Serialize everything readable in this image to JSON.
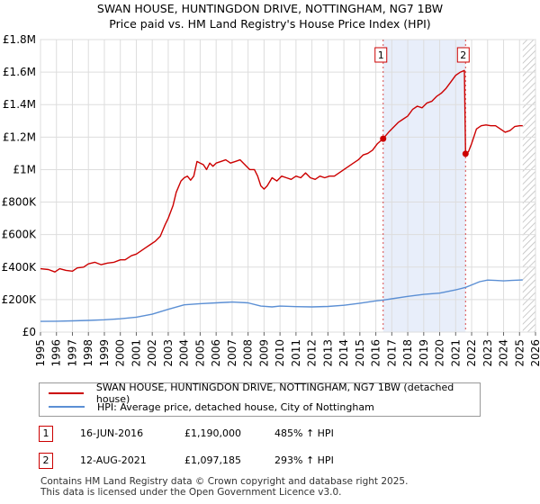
{
  "chart_data": {
    "type": "line",
    "title": "SWAN HOUSE, HUNTINGDON DRIVE, NOTTINGHAM, NG7 1BW",
    "subtitle": "Price paid vs. HM Land Registry's House Price Index (HPI)",
    "xlabel": "",
    "ylabel": "",
    "xlim": [
      1995,
      2026
    ],
    "ylim": [
      0,
      1800000
    ],
    "y_ticks": [
      {
        "value": 0,
        "label": "£0"
      },
      {
        "value": 200000,
        "label": "£200K"
      },
      {
        "value": 400000,
        "label": "£400K"
      },
      {
        "value": 600000,
        "label": "£600K"
      },
      {
        "value": 800000,
        "label": "£800K"
      },
      {
        "value": 1000000,
        "label": "£1M"
      },
      {
        "value": 1200000,
        "label": "£1.2M"
      },
      {
        "value": 1400000,
        "label": "£1.4M"
      },
      {
        "value": 1600000,
        "label": "£1.6M"
      },
      {
        "value": 1800000,
        "label": "£1.8M"
      }
    ],
    "x_ticks": [
      "1995",
      "1996",
      "1997",
      "1998",
      "1999",
      "2000",
      "2001",
      "2002",
      "2003",
      "2004",
      "2005",
      "2006",
      "2007",
      "2008",
      "2009",
      "2010",
      "2011",
      "2012",
      "2013",
      "2014",
      "2015",
      "2016",
      "2017",
      "2018",
      "2019",
      "2020",
      "2021",
      "2022",
      "2023",
      "2024",
      "2025",
      "2026"
    ],
    "grid": true,
    "shaded_region": {
      "from": 2016.46,
      "to": 2021.62
    },
    "projection_from": 2025.2,
    "series": [
      {
        "name": "SWAN HOUSE, HUNTINGDON DRIVE, NOTTINGHAM, NG7 1BW (detached house)",
        "color": "#cc0000",
        "points": [
          [
            1995.0,
            390000
          ],
          [
            1995.5,
            385000
          ],
          [
            1995.9,
            370000
          ],
          [
            1996.2,
            390000
          ],
          [
            1996.6,
            380000
          ],
          [
            1997.0,
            375000
          ],
          [
            1997.3,
            395000
          ],
          [
            1997.7,
            400000
          ],
          [
            1998.0,
            420000
          ],
          [
            1998.4,
            430000
          ],
          [
            1998.8,
            415000
          ],
          [
            1999.2,
            425000
          ],
          [
            1999.6,
            430000
          ],
          [
            2000.0,
            445000
          ],
          [
            2000.3,
            445000
          ],
          [
            2000.7,
            470000
          ],
          [
            2001.0,
            480000
          ],
          [
            2001.3,
            500000
          ],
          [
            2001.6,
            520000
          ],
          [
            2001.9,
            540000
          ],
          [
            2002.2,
            560000
          ],
          [
            2002.5,
            590000
          ],
          [
            2002.8,
            660000
          ],
          [
            2003.0,
            700000
          ],
          [
            2003.3,
            780000
          ],
          [
            2003.5,
            860000
          ],
          [
            2003.8,
            930000
          ],
          [
            2004.0,
            950000
          ],
          [
            2004.2,
            960000
          ],
          [
            2004.4,
            935000
          ],
          [
            2004.6,
            960000
          ],
          [
            2004.8,
            1050000
          ],
          [
            2005.0,
            1040000
          ],
          [
            2005.2,
            1030000
          ],
          [
            2005.4,
            1000000
          ],
          [
            2005.6,
            1040000
          ],
          [
            2005.8,
            1020000
          ],
          [
            2006.0,
            1040000
          ],
          [
            2006.3,
            1050000
          ],
          [
            2006.6,
            1060000
          ],
          [
            2006.9,
            1040000
          ],
          [
            2007.2,
            1050000
          ],
          [
            2007.5,
            1060000
          ],
          [
            2007.8,
            1030000
          ],
          [
            2008.1,
            1000000
          ],
          [
            2008.4,
            1000000
          ],
          [
            2008.6,
            960000
          ],
          [
            2008.8,
            900000
          ],
          [
            2009.0,
            880000
          ],
          [
            2009.2,
            900000
          ],
          [
            2009.5,
            950000
          ],
          [
            2009.8,
            930000
          ],
          [
            2010.1,
            960000
          ],
          [
            2010.4,
            950000
          ],
          [
            2010.7,
            940000
          ],
          [
            2011.0,
            960000
          ],
          [
            2011.3,
            950000
          ],
          [
            2011.6,
            980000
          ],
          [
            2011.9,
            950000
          ],
          [
            2012.2,
            940000
          ],
          [
            2012.5,
            960000
          ],
          [
            2012.8,
            950000
          ],
          [
            2013.1,
            960000
          ],
          [
            2013.4,
            960000
          ],
          [
            2013.7,
            980000
          ],
          [
            2014.0,
            1000000
          ],
          [
            2014.3,
            1020000
          ],
          [
            2014.6,
            1040000
          ],
          [
            2014.9,
            1060000
          ],
          [
            2015.2,
            1090000
          ],
          [
            2015.5,
            1100000
          ],
          [
            2015.8,
            1120000
          ],
          [
            2016.1,
            1160000
          ],
          [
            2016.46,
            1190000
          ],
          [
            2016.8,
            1230000
          ],
          [
            2017.1,
            1260000
          ],
          [
            2017.4,
            1290000
          ],
          [
            2017.7,
            1310000
          ],
          [
            2018.0,
            1330000
          ],
          [
            2018.3,
            1370000
          ],
          [
            2018.6,
            1390000
          ],
          [
            2018.9,
            1380000
          ],
          [
            2019.2,
            1410000
          ],
          [
            2019.5,
            1420000
          ],
          [
            2019.8,
            1450000
          ],
          [
            2020.1,
            1470000
          ],
          [
            2020.4,
            1500000
          ],
          [
            2020.7,
            1540000
          ],
          [
            2021.0,
            1580000
          ],
          [
            2021.3,
            1600000
          ],
          [
            2021.55,
            1610000
          ],
          [
            2021.62,
            1097185
          ],
          [
            2021.8,
            1110000
          ],
          [
            2022.0,
            1160000
          ],
          [
            2022.3,
            1250000
          ],
          [
            2022.6,
            1270000
          ],
          [
            2022.9,
            1275000
          ],
          [
            2023.2,
            1270000
          ],
          [
            2023.5,
            1270000
          ],
          [
            2023.8,
            1250000
          ],
          [
            2024.1,
            1230000
          ],
          [
            2024.4,
            1240000
          ],
          [
            2024.7,
            1265000
          ],
          [
            2025.0,
            1270000
          ],
          [
            2025.2,
            1270000
          ]
        ]
      },
      {
        "name": "HPI: Average price, detached house, City of Nottingham",
        "color": "#5b8fd4",
        "points": [
          [
            1995.0,
            66000
          ],
          [
            1996.0,
            67000
          ],
          [
            1997.0,
            69000
          ],
          [
            1998.0,
            72000
          ],
          [
            1999.0,
            76000
          ],
          [
            2000.0,
            82000
          ],
          [
            2001.0,
            92000
          ],
          [
            2002.0,
            110000
          ],
          [
            2003.0,
            140000
          ],
          [
            2004.0,
            168000
          ],
          [
            2005.0,
            175000
          ],
          [
            2006.0,
            180000
          ],
          [
            2007.0,
            185000
          ],
          [
            2008.0,
            180000
          ],
          [
            2008.8,
            160000
          ],
          [
            2009.5,
            155000
          ],
          [
            2010.0,
            160000
          ],
          [
            2011.0,
            157000
          ],
          [
            2012.0,
            155000
          ],
          [
            2013.0,
            158000
          ],
          [
            2014.0,
            165000
          ],
          [
            2015.0,
            178000
          ],
          [
            2016.0,
            192000
          ],
          [
            2016.46,
            197000
          ],
          [
            2017.0,
            205000
          ],
          [
            2018.0,
            220000
          ],
          [
            2019.0,
            232000
          ],
          [
            2020.0,
            240000
          ],
          [
            2021.0,
            260000
          ],
          [
            2021.62,
            275000
          ],
          [
            2022.0,
            290000
          ],
          [
            2022.5,
            310000
          ],
          [
            2023.0,
            320000
          ],
          [
            2023.5,
            318000
          ],
          [
            2024.0,
            315000
          ],
          [
            2024.5,
            318000
          ],
          [
            2025.0,
            320000
          ],
          [
            2025.2,
            321000
          ]
        ]
      }
    ],
    "annotations": [
      {
        "label": "1",
        "x": 2016.46,
        "y": 1190000,
        "date": "16-JUN-2016",
        "price": "£1,190,000",
        "hpi": "485% ↑ HPI"
      },
      {
        "label": "2",
        "x": 2021.62,
        "y": 1097185,
        "date": "12-AUG-2021",
        "price": "£1,097,185",
        "hpi": "293% ↑ HPI"
      }
    ]
  },
  "legend": {
    "items": [
      {
        "label": "SWAN HOUSE, HUNTINGDON DRIVE, NOTTINGHAM, NG7 1BW (detached house)",
        "color": "#cc0000"
      },
      {
        "label": "HPI: Average price, detached house, City of Nottingham",
        "color": "#5b8fd4"
      }
    ]
  },
  "sales": [
    {
      "label": "1",
      "date": "16-JUN-2016",
      "price": "£1,190,000",
      "hpi": "485% ↑ HPI"
    },
    {
      "label": "2",
      "date": "12-AUG-2021",
      "price": "£1,097,185",
      "hpi": "293% ↑ HPI"
    }
  ],
  "footer": {
    "line1": "Contains HM Land Registry data © Crown copyright and database right 2025.",
    "line2": "This data is licensed under the Open Government Licence v3.0."
  }
}
